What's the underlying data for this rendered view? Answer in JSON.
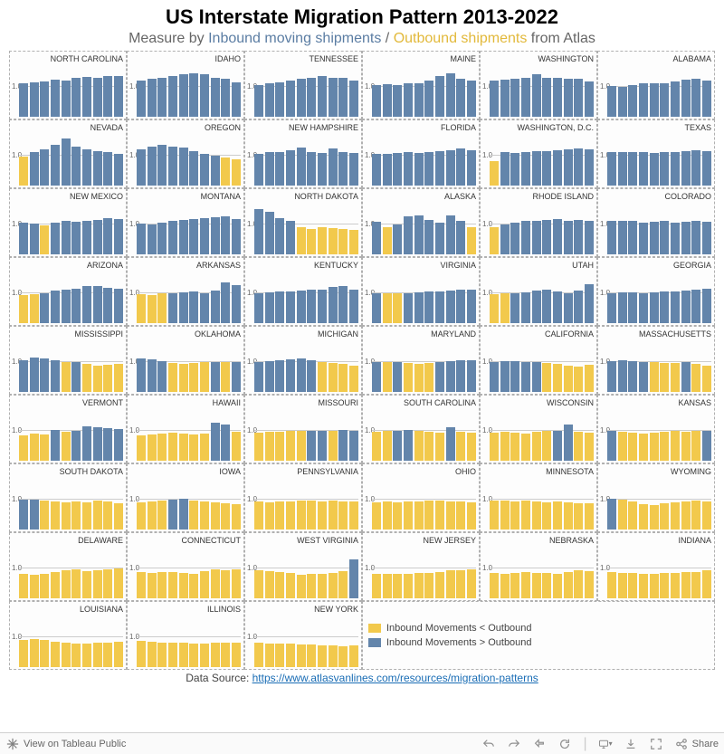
{
  "title": "US Interstate Migration Pattern 2013-2022",
  "subtitle_pre": "Measure by ",
  "subtitle_in": "Inbound moving shipments",
  "subtitle_sep": " / ",
  "subtitle_out": "Outbound shipments",
  "subtitle_post": " from Atlas",
  "source_label": "Data Source: ",
  "source_url": "https://www.atlasvanlines.com/resources/migration-patterns",
  "legend": {
    "less": "Inbound Movements < Outbound",
    "more": "Inbound Movements > Outbound"
  },
  "colors": {
    "blue": "#6385ab",
    "gold": "#f2c94c",
    "grid_bg": "#fdfdfd",
    "baseline": "#cccccc",
    "border": "#b0b0b0"
  },
  "chart": {
    "type": "small-multiples-bar",
    "ref_value": 1.0,
    "y_max": 1.8,
    "axis_label": "1.0",
    "bar_count": 10,
    "fontsize_label": 9,
    "fontsize_axis": 8
  },
  "states": [
    {
      "name": "NORTH CAROLINA",
      "v": [
        1.1,
        1.15,
        1.18,
        1.22,
        1.2,
        1.3,
        1.32,
        1.3,
        1.35,
        1.35
      ]
    },
    {
      "name": "IDAHO",
      "v": [
        1.2,
        1.25,
        1.3,
        1.35,
        1.4,
        1.45,
        1.42,
        1.3,
        1.25,
        1.15
      ]
    },
    {
      "name": "TENNESSEE",
      "v": [
        1.05,
        1.1,
        1.15,
        1.2,
        1.25,
        1.28,
        1.35,
        1.3,
        1.28,
        1.2
      ]
    },
    {
      "name": "MAINE",
      "v": [
        1.05,
        1.08,
        1.05,
        1.1,
        1.12,
        1.2,
        1.35,
        1.45,
        1.25,
        1.2
      ]
    },
    {
      "name": "WASHINGTON",
      "v": [
        1.2,
        1.22,
        1.25,
        1.3,
        1.4,
        1.28,
        1.3,
        1.25,
        1.25,
        1.18
      ]
    },
    {
      "name": "ALABAMA",
      "v": [
        1.02,
        1.0,
        1.05,
        1.1,
        1.12,
        1.1,
        1.18,
        1.22,
        1.25,
        1.2
      ]
    },
    {
      "name": "NEVADA",
      "v": [
        0.95,
        1.1,
        1.2,
        1.35,
        1.55,
        1.3,
        1.2,
        1.15,
        1.1,
        1.05
      ]
    },
    {
      "name": "OREGON",
      "v": [
        1.2,
        1.3,
        1.35,
        1.3,
        1.25,
        1.15,
        1.05,
        1.0,
        0.92,
        0.88
      ]
    },
    {
      "name": "NEW HAMPSHIRE",
      "v": [
        1.05,
        1.1,
        1.12,
        1.18,
        1.25,
        1.1,
        1.08,
        1.22,
        1.1,
        1.08
      ]
    },
    {
      "name": "FLORIDA",
      "v": [
        1.05,
        1.05,
        1.08,
        1.1,
        1.08,
        1.12,
        1.15,
        1.18,
        1.22,
        1.18
      ]
    },
    {
      "name": "WASHINGTON, D.C.",
      "v": [
        0.8,
        1.1,
        1.08,
        1.12,
        1.15,
        1.15,
        1.18,
        1.2,
        1.22,
        1.2
      ]
    },
    {
      "name": "TEXAS",
      "v": [
        1.1,
        1.12,
        1.12,
        1.1,
        1.08,
        1.1,
        1.12,
        1.15,
        1.18,
        1.15
      ]
    },
    {
      "name": "NEW MEXICO",
      "v": [
        1.05,
        1.02,
        0.95,
        1.05,
        1.1,
        1.08,
        1.12,
        1.15,
        1.2,
        1.18
      ]
    },
    {
      "name": "MONTANA",
      "v": [
        1.02,
        1.0,
        1.05,
        1.1,
        1.15,
        1.18,
        1.2,
        1.22,
        1.25,
        1.18
      ]
    },
    {
      "name": "NORTH DAKOTA",
      "v": [
        1.5,
        1.4,
        1.2,
        1.1,
        0.9,
        0.85,
        0.9,
        0.88,
        0.85,
        0.82
      ]
    },
    {
      "name": "ALASKA",
      "v": [
        1.08,
        0.9,
        1.0,
        1.25,
        1.3,
        1.15,
        1.05,
        1.3,
        1.1,
        0.9
      ]
    },
    {
      "name": "RHODE ISLAND",
      "v": [
        0.9,
        1.0,
        1.05,
        1.1,
        1.12,
        1.15,
        1.18,
        1.1,
        1.15,
        1.1
      ]
    },
    {
      "name": "COLORADO",
      "v": [
        1.1,
        1.12,
        1.1,
        1.05,
        1.08,
        1.1,
        1.05,
        1.08,
        1.1,
        1.08
      ]
    },
    {
      "name": "ARIZONA",
      "v": [
        0.92,
        0.95,
        1.0,
        1.08,
        1.12,
        1.15,
        1.22,
        1.22,
        1.18,
        1.15
      ]
    },
    {
      "name": "ARKANSAS",
      "v": [
        0.95,
        0.92,
        0.98,
        1.0,
        1.02,
        1.05,
        1.0,
        1.08,
        1.35,
        1.25
      ]
    },
    {
      "name": "KENTUCKY",
      "v": [
        1.0,
        1.02,
        1.05,
        1.05,
        1.08,
        1.1,
        1.12,
        1.2,
        1.22,
        1.1
      ]
    },
    {
      "name": "VIRGINIA",
      "v": [
        1.0,
        0.98,
        0.98,
        1.0,
        1.02,
        1.05,
        1.05,
        1.08,
        1.1,
        1.12
      ]
    },
    {
      "name": "UTAH",
      "v": [
        0.95,
        0.98,
        1.0,
        1.02,
        1.08,
        1.1,
        1.05,
        1.0,
        1.08,
        1.3
      ]
    },
    {
      "name": "GEORGIA",
      "v": [
        1.0,
        1.02,
        1.02,
        1.0,
        1.02,
        1.05,
        1.05,
        1.08,
        1.12,
        1.15
      ]
    },
    {
      "name": "MISSISSIPPI",
      "v": [
        1.05,
        1.15,
        1.1,
        1.05,
        0.98,
        1.0,
        0.92,
        0.88,
        0.9,
        0.92
      ]
    },
    {
      "name": "OKLAHOMA",
      "v": [
        1.1,
        1.08,
        1.02,
        0.95,
        0.92,
        0.95,
        0.98,
        1.0,
        0.98,
        1.0
      ]
    },
    {
      "name": "MICHIGAN",
      "v": [
        1.0,
        1.02,
        1.05,
        1.08,
        1.1,
        1.05,
        0.98,
        0.95,
        0.92,
        0.88
      ]
    },
    {
      "name": "MARYLAND",
      "v": [
        1.0,
        0.98,
        1.0,
        0.95,
        0.92,
        0.95,
        1.0,
        1.02,
        1.05,
        1.05
      ]
    },
    {
      "name": "CALIFORNIA",
      "v": [
        1.0,
        1.02,
        1.02,
        1.0,
        1.0,
        0.95,
        0.92,
        0.88,
        0.85,
        0.9
      ]
    },
    {
      "name": "MASSACHUSETTS",
      "v": [
        1.02,
        1.05,
        1.02,
        1.0,
        0.98,
        0.95,
        0.95,
        1.0,
        0.92,
        0.88
      ]
    },
    {
      "name": "VERMONT",
      "v": [
        0.85,
        0.9,
        0.88,
        1.02,
        0.95,
        1.0,
        1.15,
        1.1,
        1.08,
        1.05
      ]
    },
    {
      "name": "HAWAII",
      "v": [
        0.85,
        0.88,
        0.9,
        0.92,
        0.9,
        0.88,
        0.9,
        1.25,
        1.2,
        0.95
      ]
    },
    {
      "name": "MISSOURI",
      "v": [
        0.92,
        0.95,
        0.95,
        0.98,
        0.98,
        1.0,
        1.0,
        0.98,
        1.02,
        1.0
      ]
    },
    {
      "name": "SOUTH CAROLINA",
      "v": [
        0.95,
        0.98,
        1.0,
        1.02,
        0.98,
        0.95,
        0.92,
        1.1,
        0.95,
        0.92
      ]
    },
    {
      "name": "WISCONSIN",
      "v": [
        0.92,
        0.95,
        0.92,
        0.9,
        0.95,
        0.98,
        1.0,
        1.2,
        0.95,
        0.92
      ]
    },
    {
      "name": "KANSAS",
      "v": [
        1.0,
        0.95,
        0.92,
        0.9,
        0.92,
        0.95,
        0.98,
        0.95,
        0.98,
        1.0
      ]
    },
    {
      "name": "SOUTH DAKOTA",
      "v": [
        1.0,
        1.0,
        0.95,
        0.92,
        0.9,
        0.92,
        0.9,
        0.95,
        0.92,
        0.88
      ]
    },
    {
      "name": "IOWA",
      "v": [
        0.9,
        0.92,
        0.95,
        1.0,
        1.02,
        0.95,
        0.92,
        0.9,
        0.88,
        0.85
      ]
    },
    {
      "name": "PENNSYLVANIA",
      "v": [
        0.92,
        0.9,
        0.92,
        0.92,
        0.95,
        0.95,
        0.92,
        0.95,
        0.92,
        0.92
      ]
    },
    {
      "name": "OHIO",
      "v": [
        0.9,
        0.92,
        0.9,
        0.92,
        0.92,
        0.95,
        0.95,
        0.92,
        0.92,
        0.9
      ]
    },
    {
      "name": "MINNESOTA",
      "v": [
        0.95,
        0.95,
        0.92,
        0.95,
        0.92,
        0.9,
        0.92,
        0.9,
        0.88,
        0.88
      ]
    },
    {
      "name": "WYOMING",
      "v": [
        1.02,
        0.98,
        0.92,
        0.85,
        0.82,
        0.88,
        0.9,
        0.92,
        0.95,
        0.92
      ]
    },
    {
      "name": "DELAWARE",
      "v": [
        0.8,
        0.78,
        0.82,
        0.88,
        0.92,
        0.95,
        0.9,
        0.92,
        0.95,
        0.98
      ]
    },
    {
      "name": "CONNECTICUT",
      "v": [
        0.88,
        0.85,
        0.88,
        0.88,
        0.85,
        0.82,
        0.9,
        0.95,
        0.92,
        0.95
      ]
    },
    {
      "name": "WEST VIRGINIA",
      "v": [
        0.92,
        0.9,
        0.88,
        0.85,
        0.78,
        0.8,
        0.82,
        0.85,
        0.9,
        1.3
      ]
    },
    {
      "name": "NEW JERSEY",
      "v": [
        0.82,
        0.8,
        0.82,
        0.82,
        0.85,
        0.85,
        0.88,
        0.92,
        0.92,
        0.95
      ]
    },
    {
      "name": "NEBRASKA",
      "v": [
        0.85,
        0.82,
        0.85,
        0.88,
        0.85,
        0.85,
        0.82,
        0.88,
        0.92,
        0.9
      ]
    },
    {
      "name": "INDIANA",
      "v": [
        0.88,
        0.85,
        0.85,
        0.82,
        0.82,
        0.85,
        0.85,
        0.88,
        0.88,
        0.92
      ]
    },
    {
      "name": "LOUISIANA",
      "v": [
        0.9,
        0.92,
        0.9,
        0.85,
        0.8,
        0.78,
        0.78,
        0.8,
        0.82,
        0.85
      ]
    },
    {
      "name": "ILLINOIS",
      "v": [
        0.88,
        0.85,
        0.82,
        0.82,
        0.8,
        0.78,
        0.78,
        0.8,
        0.82,
        0.8
      ]
    },
    {
      "name": "NEW YORK",
      "v": [
        0.8,
        0.78,
        0.78,
        0.78,
        0.75,
        0.75,
        0.72,
        0.72,
        0.7,
        0.72
      ]
    }
  ],
  "toolbar": {
    "view": "View on Tableau Public",
    "share": "Share"
  }
}
